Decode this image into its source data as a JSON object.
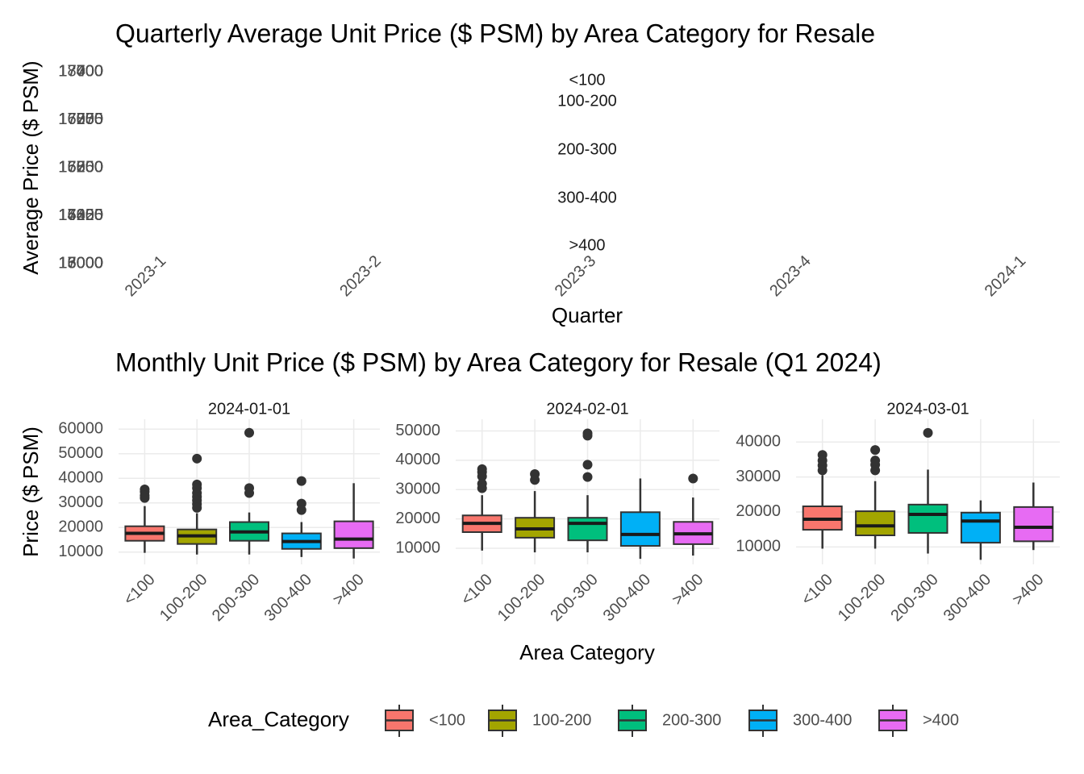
{
  "chart_data": [
    {
      "type": "line",
      "title": "Quarterly Average Unit Price ($ PSM) by Area Category for Resale",
      "x_label": "Quarter",
      "y_label": "Average Price ($ PSM)",
      "categories": [
        "2023-1",
        "2023-2",
        "2023-3",
        "2023-4",
        "2024-1"
      ],
      "panels": [
        {
          "name": "<100",
          "ylim": [
            17000,
            18000
          ],
          "yticks": [
            17000,
            17250,
            17500,
            17750,
            18000
          ]
        },
        {
          "name": "100-200",
          "ylim": [
            16000,
            17400
          ],
          "yticks": [
            16000,
            16350,
            16700,
            17050,
            17400
          ]
        },
        {
          "name": "200-300",
          "ylim": [
            16000,
            17700
          ],
          "yticks": [
            16000,
            16425,
            16850,
            17275,
            17700
          ]
        },
        {
          "name": "300-400",
          "ylim": [
            13000,
            17000
          ],
          "yticks": [
            13000,
            14000,
            15000,
            16000,
            17000
          ]
        },
        {
          "name": ">400",
          "ylim": [
            15000,
            17400
          ],
          "yticks": [
            15000,
            15600,
            16200,
            16800,
            17400
          ]
        }
      ]
    },
    {
      "type": "box",
      "title": "Monthly Unit Price ($ PSM) by Area Category for Resale (Q1 2024)",
      "x_label": "Area Category",
      "y_label": "Price ($ PSM)",
      "categories": [
        "<100",
        "100-200",
        "200-300",
        "300-400",
        ">400"
      ],
      "colors": [
        "#F8766D",
        "#A3A500",
        "#00BF7D",
        "#00B0F6",
        "#E76BF3"
      ],
      "legend_title": "Area_Category",
      "legend_position": "bottom",
      "grid": true,
      "panels": [
        {
          "name": "2024-01-01",
          "ylim": [
            5000,
            64000
          ],
          "yticks": [
            10000,
            20000,
            30000,
            40000,
            50000,
            60000
          ],
          "boxes": [
            {
              "low": 9700,
              "q1": 14600,
              "median": 17600,
              "q3": 20500,
              "high": 28700,
              "outliers": [
                35500,
                34500,
                33000,
                32000
              ]
            },
            {
              "low": 9000,
              "q1": 13300,
              "median": 16600,
              "q3": 19200,
              "high": 25800,
              "outliers": [
                48000,
                37500,
                36000,
                34000,
                32500,
                31000,
                29500,
                28000
              ]
            },
            {
              "low": 9000,
              "q1": 14600,
              "median": 18200,
              "q3": 22200,
              "high": 26100,
              "outliers": [
                58500,
                36000,
                34000
              ]
            },
            {
              "low": 8000,
              "q1": 11300,
              "median": 14300,
              "q3": 17600,
              "high": 22200,
              "outliers": [
                38900,
                29700,
                27100
              ]
            },
            {
              "low": 7400,
              "q1": 11600,
              "median": 15300,
              "q3": 22500,
              "high": 38000,
              "outliers": []
            }
          ]
        },
        {
          "name": "2024-02-01",
          "ylim": [
            4500,
            54000
          ],
          "yticks": [
            10000,
            20000,
            30000,
            40000,
            50000
          ],
          "boxes": [
            {
              "low": 9200,
              "q1": 15500,
              "median": 18500,
              "q3": 21200,
              "high": 28100,
              "outliers": [
                37000,
                36000,
                34500,
                32000,
                30500
              ]
            },
            {
              "low": 8600,
              "q1": 13600,
              "median": 16600,
              "q3": 20400,
              "high": 29500,
              "outliers": [
                35300,
                33300
              ]
            },
            {
              "low": 8600,
              "q1": 12700,
              "median": 18500,
              "q3": 20400,
              "high": 28100,
              "outliers": [
                49200,
                48400,
                38500,
                34300
              ]
            },
            {
              "low": 6400,
              "q1": 10800,
              "median": 14700,
              "q3": 22300,
              "high": 33800,
              "outliers": []
            },
            {
              "low": 7500,
              "q1": 11400,
              "median": 14900,
              "q3": 19000,
              "high": 27300,
              "outliers": [
                33800
              ]
            }
          ]
        },
        {
          "name": "2024-03-01",
          "ylim": [
            5000,
            46500
          ],
          "yticks": [
            10000,
            20000,
            30000,
            40000
          ],
          "boxes": [
            {
              "low": 9500,
              "q1": 14900,
              "median": 17900,
              "q3": 21600,
              "high": 30500,
              "outliers": [
                36300,
                34700,
                33300,
                31900
              ]
            },
            {
              "low": 9500,
              "q1": 13300,
              "median": 16000,
              "q3": 20200,
              "high": 28800,
              "outliers": [
                37700,
                34700,
                33500,
                31900
              ]
            },
            {
              "low": 8100,
              "q1": 14000,
              "median": 19300,
              "q3": 22100,
              "high": 32100,
              "outliers": [
                42600
              ]
            },
            {
              "low": 6300,
              "q1": 11200,
              "median": 17400,
              "q3": 19800,
              "high": 23300,
              "outliers": []
            },
            {
              "low": 9100,
              "q1": 11600,
              "median": 15600,
              "q3": 21400,
              "high": 28400,
              "outliers": []
            }
          ]
        }
      ]
    }
  ]
}
